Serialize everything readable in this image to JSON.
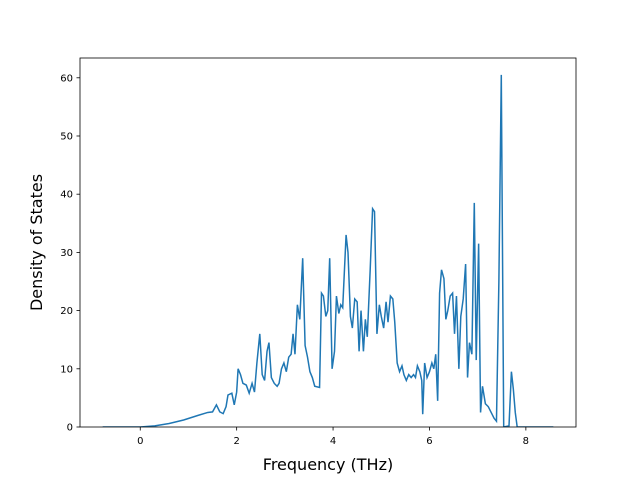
{
  "chart_data": {
    "type": "line",
    "xlabel": "Frequency (THz)",
    "ylabel": "Density of States",
    "color": "#1f77b4",
    "xlim": [
      -1.25,
      9.04
    ],
    "ylim": [
      0,
      63.4
    ],
    "xticks": [
      0,
      2,
      4,
      6,
      8
    ],
    "yticks": [
      0,
      10,
      20,
      30,
      40,
      50,
      60
    ],
    "x": [
      -0.78,
      0,
      0.3,
      0.6,
      0.9,
      1.2,
      1.4,
      1.5,
      1.58,
      1.65,
      1.72,
      1.78,
      1.82,
      1.9,
      1.95,
      2.0,
      2.03,
      2.08,
      2.13,
      2.2,
      2.26,
      2.32,
      2.37,
      2.42,
      2.48,
      2.53,
      2.58,
      2.63,
      2.67,
      2.72,
      2.78,
      2.84,
      2.88,
      2.93,
      2.98,
      3.03,
      3.08,
      3.13,
      3.17,
      3.21,
      3.26,
      3.31,
      3.37,
      3.42,
      3.47,
      3.52,
      3.57,
      3.62,
      3.72,
      3.76,
      3.8,
      3.85,
      3.89,
      3.93,
      3.98,
      4.03,
      4.07,
      4.12,
      4.16,
      4.2,
      4.27,
      4.31,
      4.36,
      4.4,
      4.45,
      4.5,
      4.54,
      4.58,
      4.63,
      4.67,
      4.71,
      4.77,
      4.82,
      4.86,
      4.91,
      4.96,
      5.0,
      5.05,
      5.1,
      5.14,
      5.19,
      5.24,
      5.28,
      5.33,
      5.38,
      5.43,
      5.47,
      5.52,
      5.57,
      5.62,
      5.67,
      5.71,
      5.75,
      5.8,
      5.84,
      5.86,
      5.9,
      5.95,
      6.0,
      6.05,
      6.09,
      6.13,
      6.17,
      6.21,
      6.25,
      6.3,
      6.34,
      6.38,
      6.43,
      6.48,
      6.52,
      6.56,
      6.61,
      6.65,
      6.7,
      6.75,
      6.79,
      6.83,
      6.88,
      6.93,
      6.97,
      7.02,
      7.06,
      7.1,
      7.16,
      7.22,
      7.28,
      7.34,
      7.39,
      7.44,
      7.49,
      7.54,
      7.65,
      7.7,
      7.74,
      7.78,
      7.82,
      8.57
    ],
    "values": [
      0,
      0,
      0.2,
      0.6,
      1.2,
      2,
      2.5,
      2.6,
      3.8,
      2.6,
      2.3,
      3.5,
      5.5,
      5.8,
      3.8,
      6,
      10,
      9,
      7.5,
      7.2,
      5.8,
      7.5,
      6,
      11,
      16,
      9,
      8,
      13,
      14.5,
      8.5,
      7.5,
      7,
      7.5,
      10,
      11,
      9.5,
      12,
      12.5,
      16,
      12.5,
      21,
      18.5,
      29,
      14,
      12,
      9.5,
      8.5,
      7,
      6.8,
      23,
      22.5,
      19,
      20,
      29,
      10,
      13,
      22.5,
      19.5,
      21,
      20.5,
      33,
      30,
      19,
      17,
      22,
      21.5,
      13,
      20,
      13,
      18.5,
      15.5,
      27,
      37.5,
      37,
      16,
      21,
      19,
      17,
      21.5,
      18,
      22.5,
      22,
      18,
      11,
      9.5,
      10.5,
      9,
      8,
      9,
      8.5,
      9,
      8.5,
      10.5,
      9.5,
      8,
      2.2,
      11,
      8.5,
      9.5,
      11,
      10,
      12.5,
      4.5,
      23,
      27,
      25.5,
      18.5,
      20,
      22.5,
      23,
      16,
      22.5,
      10,
      19,
      22,
      28,
      8.5,
      14.5,
      12.5,
      38.5,
      11.5,
      31.5,
      2.5,
      7,
      4,
      3.5,
      2.5,
      1.5,
      1,
      25,
      60.5,
      0,
      0.2,
      9.5,
      6.5,
      2.5,
      0,
      0
    ]
  }
}
